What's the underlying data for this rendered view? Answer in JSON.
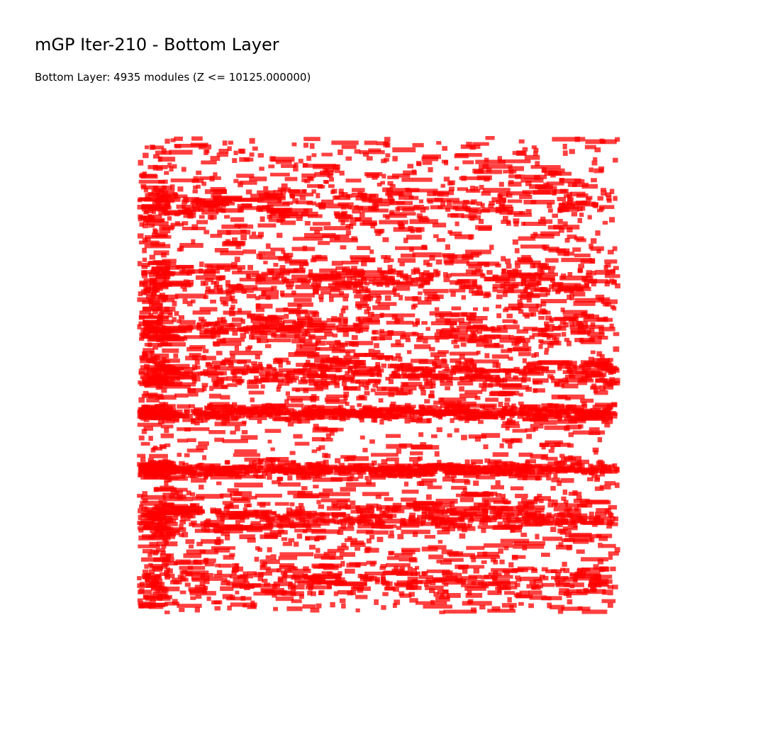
{
  "page": {
    "title": "mGP Iter-210 - Bottom Layer",
    "subtitle": "Bottom Layer: 4935 modules (Z <= 10125.000000)"
  },
  "chart_data": {
    "type": "scatter",
    "title": "mGP Iter-210 - Bottom Layer",
    "subtitle": "Bottom Layer: 4935 modules (Z <= 10125.000000)",
    "layer": "Bottom Layer",
    "module_count": 4935,
    "z_threshold": 10125.0,
    "module_color": "#ff0000",
    "module_opacity": 0.75,
    "axes_visible": false,
    "grid": false,
    "legend": "none",
    "xlim": [
      0,
      1
    ],
    "ylim": [
      0,
      1
    ],
    "density_bands": [
      {
        "y": 0.14,
        "spread": 0.03,
        "strength": 0.55
      },
      {
        "y": 0.3,
        "spread": 0.025,
        "strength": 0.65
      },
      {
        "y": 0.4,
        "spread": 0.02,
        "strength": 0.55
      },
      {
        "y": 0.495,
        "spread": 0.018,
        "strength": 0.75
      },
      {
        "y": 0.58,
        "spread": 0.008,
        "strength": 1.0
      },
      {
        "y": 0.7,
        "spread": 0.009,
        "strength": 0.95
      },
      {
        "y": 0.8,
        "spread": 0.02,
        "strength": 0.75
      },
      {
        "y": 0.93,
        "spread": 0.025,
        "strength": 0.55
      }
    ]
  }
}
